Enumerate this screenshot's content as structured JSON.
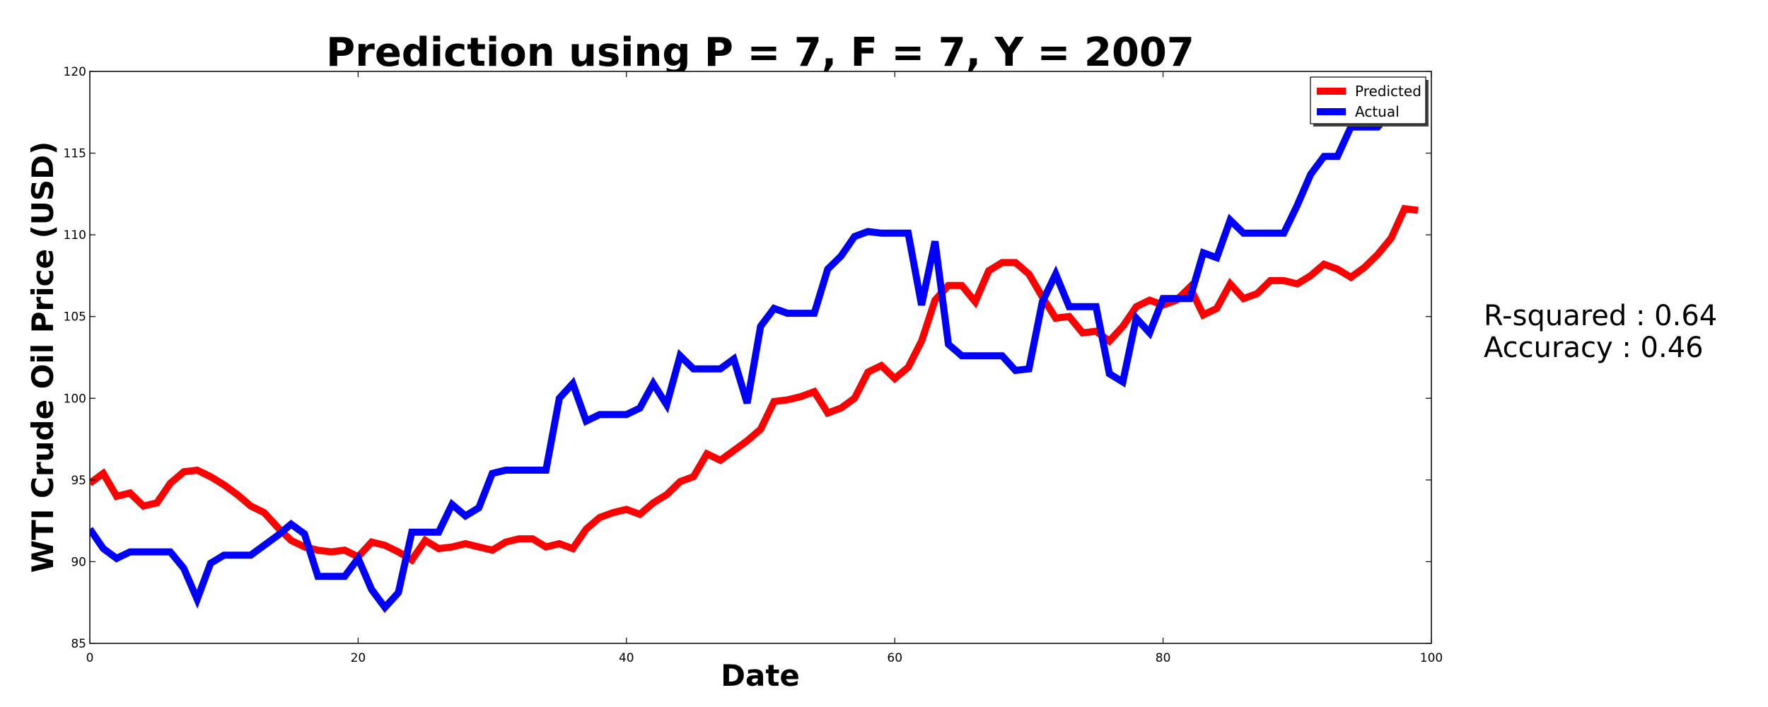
{
  "chart_data": {
    "type": "line",
    "title": "Prediction using P = 7, F = 7, Y = 2007",
    "xlabel": "Date",
    "ylabel": "WTI Crude Oil Price (USD)",
    "xlim": [
      0,
      100
    ],
    "ylim": [
      85,
      120
    ],
    "xticks": [
      0,
      20,
      40,
      60,
      80,
      100
    ],
    "yticks": [
      85,
      90,
      95,
      100,
      105,
      110,
      115,
      120
    ],
    "grid": false,
    "legend_position": "top-right",
    "series": [
      {
        "name": "Predicted",
        "color": "#ff0000",
        "x": [
          0,
          1,
          2,
          3,
          4,
          5,
          6,
          7,
          8,
          9,
          10,
          11,
          12,
          13,
          14,
          15,
          16,
          17,
          18,
          19,
          20,
          21,
          22,
          23,
          24,
          25,
          26,
          27,
          28,
          29,
          30,
          31,
          32,
          33,
          34,
          35,
          36,
          37,
          38,
          39,
          40,
          41,
          42,
          43,
          44,
          45,
          46,
          47,
          48,
          49,
          50,
          51,
          52,
          53,
          54,
          55,
          56,
          57,
          58,
          59,
          60,
          61,
          62,
          63,
          64,
          65,
          66,
          67,
          68,
          69,
          70,
          71,
          72,
          73,
          74,
          75,
          76,
          77,
          78,
          79,
          80,
          81,
          82,
          83,
          84,
          85,
          86,
          87,
          88,
          89,
          90,
          91,
          92,
          93,
          94,
          95,
          96,
          97,
          98,
          99
        ],
        "values": [
          94.8,
          95.4,
          94.0,
          94.2,
          93.4,
          93.6,
          94.8,
          95.5,
          95.6,
          95.2,
          94.7,
          94.1,
          93.4,
          93.0,
          92.1,
          91.3,
          90.9,
          90.7,
          90.6,
          90.7,
          90.3,
          91.2,
          91.0,
          90.6,
          90.1,
          91.3,
          90.8,
          90.9,
          91.1,
          90.9,
          90.7,
          91.2,
          91.4,
          91.4,
          90.9,
          91.1,
          90.8,
          92.0,
          92.7,
          93.0,
          93.2,
          92.9,
          93.6,
          94.1,
          94.9,
          95.2,
          96.6,
          96.2,
          96.8,
          97.4,
          98.1,
          99.8,
          99.9,
          100.1,
          100.4,
          99.1,
          99.4,
          100.0,
          101.6,
          102.0,
          101.2,
          101.9,
          103.5,
          106.0,
          106.9,
          106.9,
          105.9,
          107.8,
          108.3,
          108.3,
          107.6,
          106.2,
          104.9,
          105.0,
          104.0,
          104.1,
          103.5,
          104.4,
          105.6,
          106.0,
          105.7,
          106.0,
          106.8,
          105.1,
          105.5,
          107.0,
          106.1,
          106.4,
          107.2,
          107.2,
          107.0,
          107.5,
          108.2,
          107.9,
          107.4,
          108.0,
          108.8,
          109.8,
          111.6,
          111.5
        ]
      },
      {
        "name": "Actual",
        "color": "#0000ff",
        "x": [
          0,
          1,
          2,
          3,
          4,
          5,
          6,
          7,
          8,
          9,
          10,
          11,
          12,
          13,
          14,
          15,
          16,
          17,
          18,
          19,
          20,
          21,
          22,
          23,
          24,
          25,
          26,
          27,
          28,
          29,
          30,
          31,
          32,
          33,
          34,
          35,
          36,
          37,
          38,
          39,
          40,
          41,
          42,
          43,
          44,
          45,
          46,
          47,
          48,
          49,
          50,
          51,
          52,
          53,
          54,
          55,
          56,
          57,
          58,
          59,
          60,
          61,
          62,
          63,
          64,
          65,
          66,
          67,
          68,
          69,
          70,
          71,
          72,
          73,
          74,
          75,
          76,
          77,
          78,
          79,
          80,
          81,
          82,
          83,
          84,
          85,
          86,
          87,
          88,
          89,
          90,
          91,
          92,
          93,
          94,
          95,
          96,
          97
        ],
        "values": [
          92.0,
          90.8,
          90.2,
          90.6,
          90.6,
          90.6,
          90.6,
          89.6,
          87.7,
          89.9,
          90.4,
          90.4,
          90.4,
          91.0,
          91.6,
          92.3,
          91.7,
          89.1,
          89.1,
          89.1,
          90.2,
          88.3,
          87.2,
          88.1,
          91.8,
          91.8,
          91.8,
          93.5,
          92.8,
          93.3,
          95.4,
          95.6,
          95.6,
          95.6,
          95.6,
          100.0,
          100.9,
          98.6,
          99.0,
          99.0,
          99.0,
          99.4,
          100.9,
          99.6,
          102.6,
          101.8,
          101.8,
          101.8,
          102.4,
          99.7,
          104.4,
          105.5,
          105.2,
          105.2,
          105.2,
          107.9,
          108.7,
          109.9,
          110.2,
          110.1,
          110.1,
          110.1,
          105.7,
          109.6,
          103.3,
          102.6,
          102.6,
          102.6,
          102.6,
          101.7,
          101.8,
          105.9,
          107.6,
          105.6,
          105.6,
          105.6,
          101.5,
          101.0,
          104.9,
          104.0,
          106.1,
          106.1,
          106.1,
          108.9,
          108.6,
          110.9,
          110.1,
          110.1,
          110.1,
          110.1,
          111.8,
          113.7,
          114.8,
          114.8,
          116.6,
          116.6,
          116.6,
          117.5
        ]
      }
    ],
    "annotations": [
      "R-squared : 0.64",
      "Accuracy : 0.46"
    ]
  }
}
